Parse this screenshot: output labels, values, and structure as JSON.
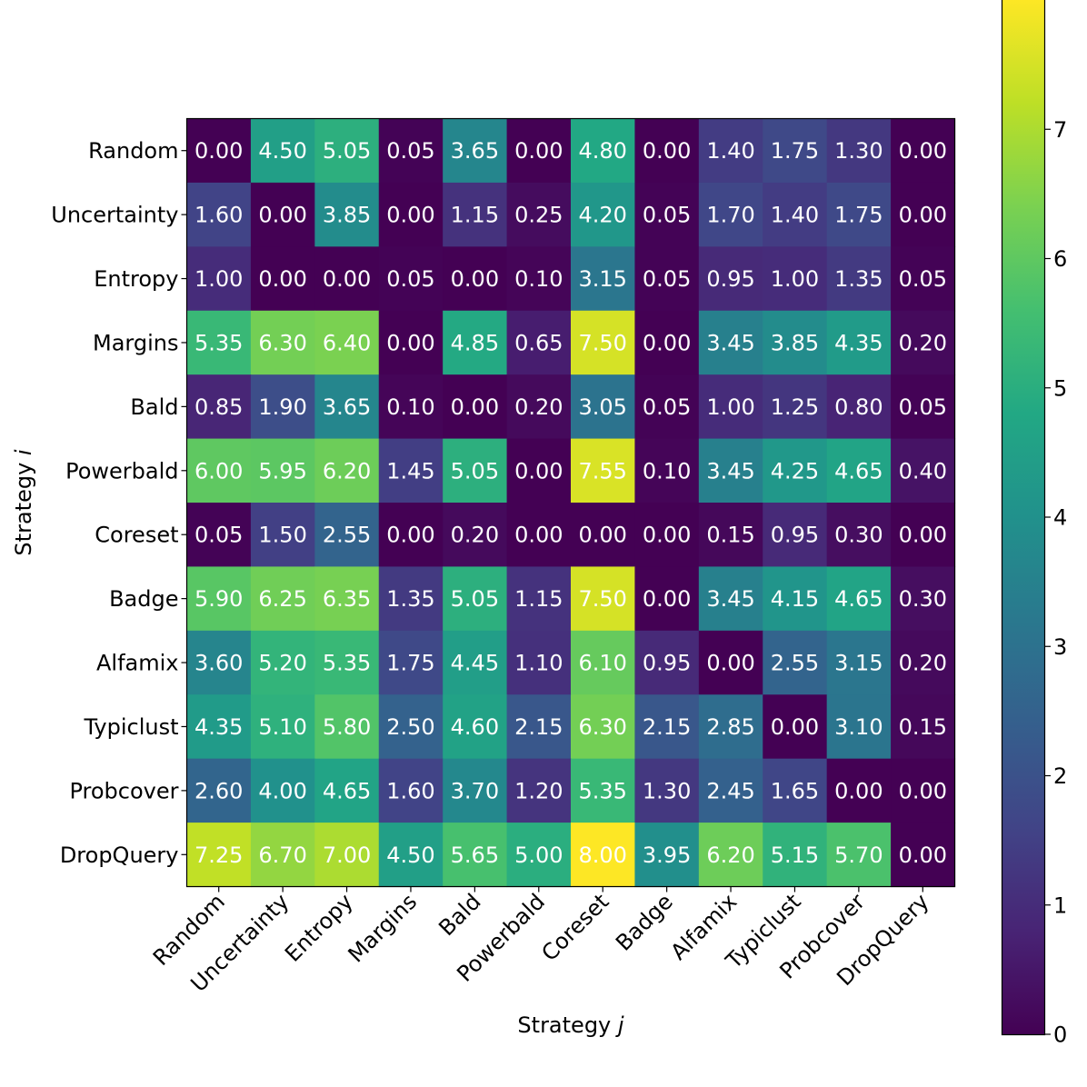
{
  "chart_data": {
    "type": "heatmap",
    "title": "",
    "xlabel": "Strategy j",
    "ylabel": "Strategy i",
    "xlabel_parts": {
      "text": "Strategy ",
      "italic": "j"
    },
    "ylabel_parts": {
      "text": "Strategy ",
      "italic": "i"
    },
    "rows": [
      "Random",
      "Uncertainty",
      "Entropy",
      "Margins",
      "Bald",
      "Powerbald",
      "Coreset",
      "Badge",
      "Alfamix",
      "Typiclust",
      "Probcover",
      "DropQuery"
    ],
    "columns": [
      "Random",
      "Uncertainty",
      "Entropy",
      "Margins",
      "Bald",
      "Powerbald",
      "Coreset",
      "Badge",
      "Alfamix",
      "Typiclust",
      "Probcover",
      "DropQuery"
    ],
    "values": [
      [
        0.0,
        4.5,
        5.05,
        0.05,
        3.65,
        0.0,
        4.8,
        0.0,
        1.4,
        1.75,
        1.3,
        0.0
      ],
      [
        1.6,
        0.0,
        3.85,
        0.0,
        1.15,
        0.25,
        4.2,
        0.05,
        1.7,
        1.4,
        1.75,
        0.0
      ],
      [
        1.0,
        0.0,
        0.0,
        0.05,
        0.0,
        0.1,
        3.15,
        0.05,
        0.95,
        1.0,
        1.35,
        0.05
      ],
      [
        5.35,
        6.3,
        6.4,
        0.0,
        4.85,
        0.65,
        7.5,
        0.0,
        3.45,
        3.85,
        4.35,
        0.2
      ],
      [
        0.85,
        1.9,
        3.65,
        0.1,
        0.0,
        0.2,
        3.05,
        0.05,
        1.0,
        1.25,
        0.8,
        0.05
      ],
      [
        6.0,
        5.95,
        6.2,
        1.45,
        5.05,
        0.0,
        7.55,
        0.1,
        3.45,
        4.25,
        4.65,
        0.4
      ],
      [
        0.05,
        1.5,
        2.55,
        0.0,
        0.2,
        0.0,
        0.0,
        0.0,
        0.15,
        0.95,
        0.3,
        0.0
      ],
      [
        5.9,
        6.25,
        6.35,
        1.35,
        5.05,
        1.15,
        7.5,
        0.0,
        3.45,
        4.15,
        4.65,
        0.3
      ],
      [
        3.6,
        5.2,
        5.35,
        1.75,
        4.45,
        1.1,
        6.1,
        0.95,
        0.0,
        2.55,
        3.15,
        0.2
      ],
      [
        4.35,
        5.1,
        5.8,
        2.5,
        4.6,
        2.15,
        6.3,
        2.15,
        2.85,
        0.0,
        3.1,
        0.15
      ],
      [
        2.6,
        4.0,
        4.65,
        1.6,
        3.7,
        1.2,
        5.35,
        1.3,
        2.45,
        1.65,
        0.0,
        0.0
      ],
      [
        7.25,
        6.7,
        7.0,
        4.5,
        5.65,
        5.0,
        8.0,
        3.95,
        6.2,
        5.15,
        5.7,
        0.0
      ]
    ],
    "value_format": "2 decimals",
    "colormap": "viridis",
    "colorbar": {
      "vmin": 0,
      "vmax": 8,
      "ticks": [
        0,
        1,
        2,
        3,
        4,
        5,
        6,
        7
      ],
      "tick_labels": [
        "0",
        "1",
        "2",
        "3",
        "4",
        "5",
        "6",
        "7"
      ],
      "position": "right"
    }
  }
}
